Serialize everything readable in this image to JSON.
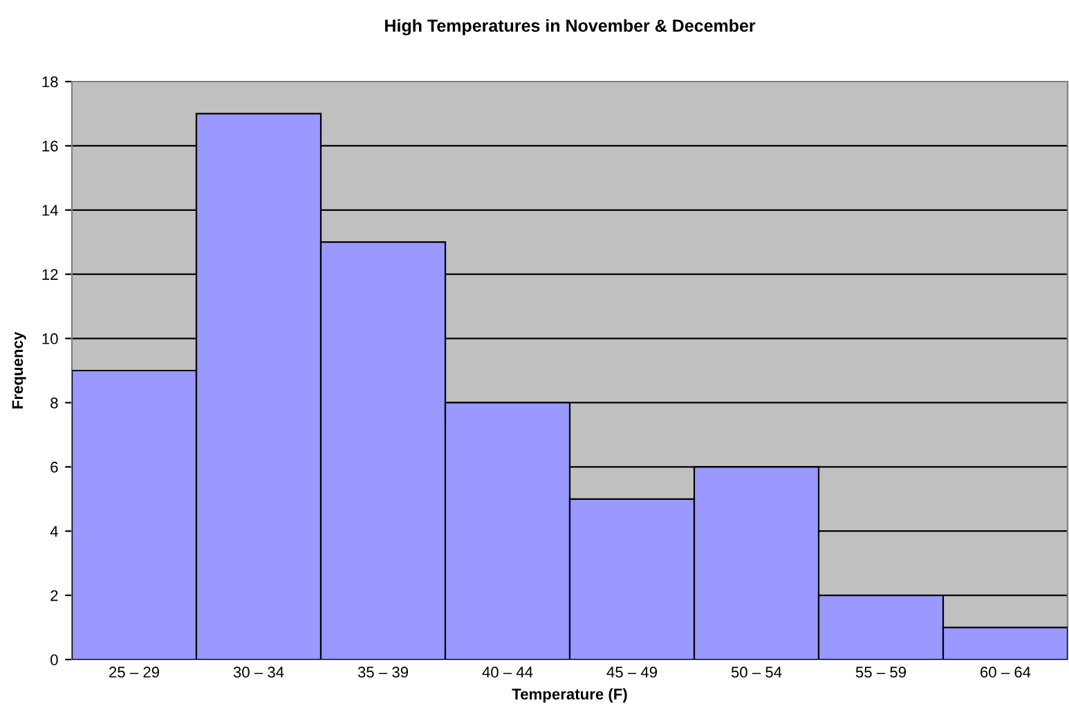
{
  "chart_data": {
    "type": "bar",
    "title": "High Temperatures in November & December",
    "xlabel": "Temperature (F)",
    "ylabel": "Frequency",
    "categories": [
      "25 – 29",
      "30 – 34",
      "35 – 39",
      "40 – 44",
      "45 – 49",
      "50 – 54",
      "55 – 59",
      "60 – 64"
    ],
    "values": [
      9,
      17,
      13,
      8,
      5,
      6,
      2,
      1
    ],
    "color": "#9999ff",
    "ylim": [
      0,
      18
    ],
    "yticks": [
      0,
      2,
      4,
      6,
      8,
      10,
      12,
      14,
      16,
      18
    ],
    "grid": "y"
  }
}
